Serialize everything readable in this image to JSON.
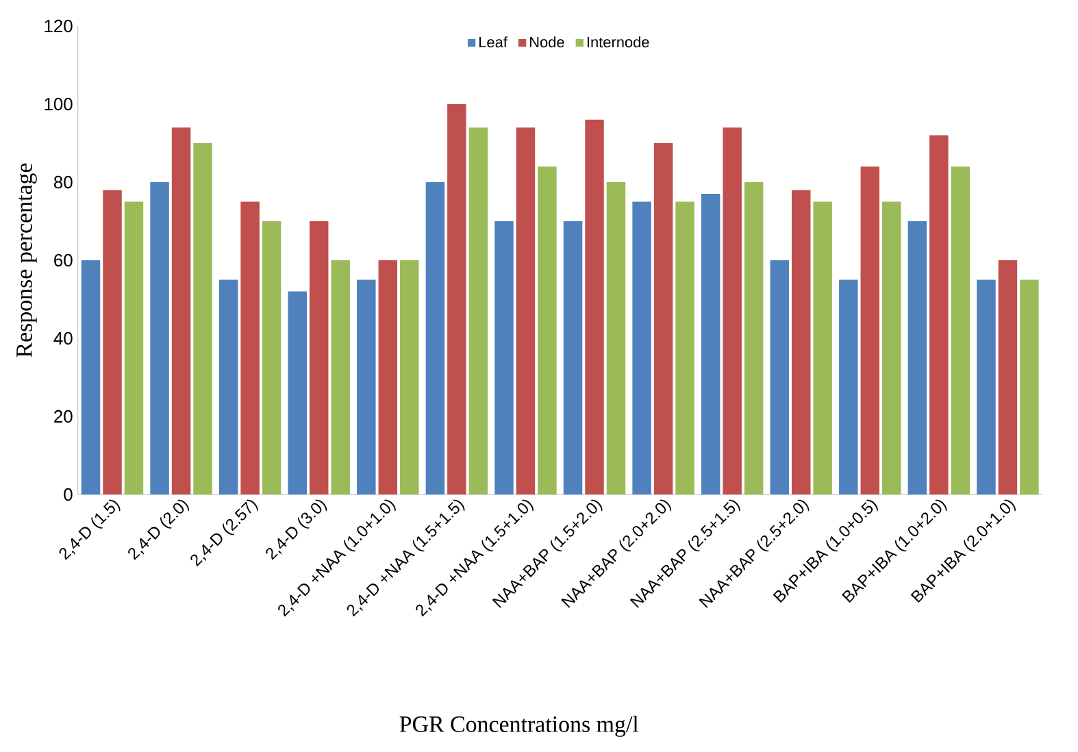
{
  "chart_data": {
    "type": "bar",
    "xlabel": "PGR Concentrations mg/l",
    "ylabel": "Response percentage",
    "categories": [
      "2,4-D (1.5)",
      "2,4-D (2.0)",
      "2,4-D (2.57)",
      "2,4-D (3.0)",
      "2,4-D +NAA (1.0+1.0)",
      "2,4-D +NAA (1.5+1.5)",
      "2,4-D +NAA (1.5+1.0)",
      "NAA+BAP (1.5+2.0)",
      "NAA+BAP (2.0+2.0)",
      "NAA+BAP (2.5+1.5)",
      "NAA+BAP (2.5+2.0)",
      "BAP+IBA (1.0+0.5)",
      "BAP+IBA (1.0+2.0)",
      "BAP+IBA (2.0+1.0)"
    ],
    "series": [
      {
        "name": "Leaf",
        "color": "#4f81bd",
        "values": [
          60,
          80,
          55,
          52,
          55,
          80,
          70,
          70,
          75,
          77,
          60,
          55,
          70,
          55
        ]
      },
      {
        "name": "Node",
        "color": "#c0504d",
        "values": [
          78,
          94,
          75,
          70,
          60,
          100,
          94,
          96,
          90,
          94,
          78,
          84,
          92,
          60
        ]
      },
      {
        "name": "Internode",
        "color": "#9bbb59",
        "values": [
          75,
          90,
          70,
          60,
          60,
          94,
          84,
          80,
          75,
          80,
          75,
          75,
          84,
          55
        ]
      }
    ],
    "ylim": [
      0,
      120
    ],
    "yticks": [
      0,
      20,
      40,
      60,
      80,
      100,
      120
    ],
    "grid": false,
    "legend": "top"
  }
}
